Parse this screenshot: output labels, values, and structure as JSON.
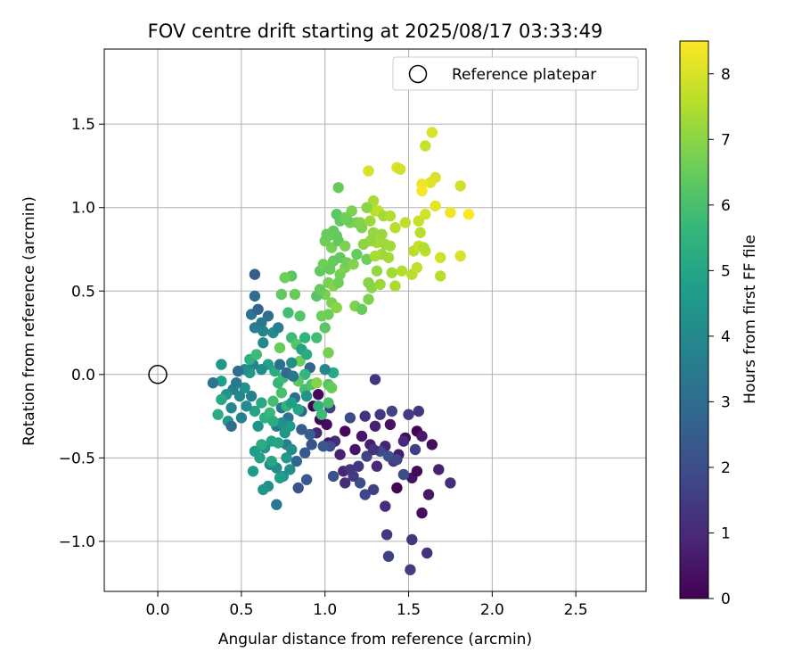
{
  "chart_data": {
    "type": "scatter",
    "title": "FOV centre drift starting at 2025/08/17 03:33:49",
    "xlabel": "Angular distance from reference (arcmin)",
    "ylabel": "Rotation from reference (arcmin)",
    "xlim": [
      -0.32,
      2.92
    ],
    "ylim": [
      -1.3,
      1.95
    ],
    "xticks": [
      0.0,
      0.5,
      1.0,
      1.5,
      2.0,
      2.5
    ],
    "xtick_labels": [
      "0.0",
      "0.5",
      "1.0",
      "1.5",
      "2.0",
      "2.5"
    ],
    "yticks": [
      -1.0,
      -0.5,
      0.0,
      0.5,
      1.0,
      1.5
    ],
    "ytick_labels": [
      "−1.0",
      "−0.5",
      "0.0",
      "0.5",
      "1.0",
      "1.5"
    ],
    "grid": true,
    "legend": {
      "position": "top-right",
      "entries": [
        "Reference platepar"
      ]
    },
    "reference_point": {
      "x": 0.0,
      "y": 0.0
    },
    "colorbar": {
      "label": "Hours from first FF file",
      "min": 0,
      "max": 8.5,
      "ticks": [
        0,
        1,
        2,
        3,
        4,
        5,
        6,
        7,
        8
      ],
      "tick_labels": [
        "0",
        "1",
        "2",
        "3",
        "4",
        "5",
        "6",
        "7",
        "8"
      ],
      "colormap": "viridis",
      "colormap_stops": [
        "#440154",
        "#482878",
        "#3e4a89",
        "#31688e",
        "#26828e",
        "#1f9e89",
        "#35b779",
        "#6ece58",
        "#b5de2b",
        "#fde725"
      ]
    },
    "points": [
      [
        1.51,
        -1.17,
        1.5
      ],
      [
        1.38,
        -1.09,
        1.6
      ],
      [
        1.37,
        -0.96,
        1.4
      ],
      [
        1.52,
        -0.99,
        1.3
      ],
      [
        1.61,
        -1.07,
        1.2
      ],
      [
        1.58,
        -0.83,
        0.3
      ],
      [
        1.62,
        -0.72,
        0.5
      ],
      [
        1.43,
        -0.68,
        0.1
      ],
      [
        1.52,
        -0.62,
        0.4
      ],
      [
        1.55,
        -0.58,
        0.2
      ],
      [
        1.68,
        -0.57,
        0.8
      ],
      [
        1.75,
        -0.65,
        1.1
      ],
      [
        1.64,
        -0.42,
        0.3
      ],
      [
        1.55,
        -0.34,
        0.1
      ],
      [
        1.48,
        -0.38,
        0.2
      ],
      [
        1.44,
        -0.48,
        0.6
      ],
      [
        1.36,
        -0.43,
        0.9
      ],
      [
        1.41,
        -0.52,
        1.3
      ],
      [
        1.31,
        -0.55,
        1.0
      ],
      [
        1.27,
        -0.42,
        0.7
      ],
      [
        1.22,
        -0.37,
        0.5
      ],
      [
        1.18,
        -0.45,
        0.4
      ],
      [
        1.12,
        -0.34,
        0.2
      ],
      [
        1.09,
        -0.48,
        0.8
      ],
      [
        1.06,
        -0.4,
        1.0
      ],
      [
        1.02,
        -0.41,
        0.6
      ],
      [
        1.01,
        -0.3,
        0.3
      ],
      [
        0.97,
        -0.27,
        0.1
      ],
      [
        0.93,
        -0.19,
        0.0
      ],
      [
        0.96,
        -0.12,
        0.2
      ],
      [
        0.95,
        -0.35,
        0.9
      ],
      [
        1.03,
        -0.2,
        1.6
      ],
      [
        1.15,
        -0.26,
        1.9
      ],
      [
        1.24,
        -0.25,
        1.2
      ],
      [
        1.33,
        -0.24,
        1.4
      ],
      [
        1.4,
        -0.22,
        1.7
      ],
      [
        1.5,
        -0.24,
        1.5
      ],
      [
        1.56,
        -0.22,
        1.3
      ],
      [
        1.58,
        -0.37,
        0.6
      ],
      [
        1.47,
        -0.4,
        1.0
      ],
      [
        1.39,
        -0.3,
        0.4
      ],
      [
        1.3,
        -0.31,
        0.8
      ],
      [
        1.3,
        -0.03,
        1.3
      ],
      [
        1.36,
        -0.79,
        1.1
      ],
      [
        1.29,
        -0.69,
        1.6
      ],
      [
        1.24,
        -0.72,
        1.8
      ],
      [
        1.21,
        -0.65,
        2.0
      ],
      [
        1.17,
        -0.61,
        1.5
      ],
      [
        1.12,
        -0.65,
        1.1
      ],
      [
        1.11,
        -0.58,
        0.9
      ],
      [
        1.15,
        -0.57,
        1.3
      ],
      [
        1.05,
        -0.61,
        2.2
      ],
      [
        1.25,
        -0.49,
        1.7
      ],
      [
        1.33,
        -0.46,
        1.9
      ],
      [
        1.38,
        -0.49,
        2.1
      ],
      [
        1.43,
        -0.51,
        1.8
      ],
      [
        1.47,
        -0.6,
        2.0
      ],
      [
        1.54,
        -0.45,
        1.6
      ],
      [
        1.29,
        -0.45,
        1.2
      ],
      [
        1.2,
        -0.55,
        1.4
      ],
      [
        1.03,
        -0.43,
        2.0
      ],
      [
        0.99,
        -0.43,
        2.3
      ],
      [
        0.91,
        -0.36,
        2.6
      ],
      [
        0.86,
        -0.33,
        2.5
      ],
      [
        0.88,
        -0.47,
        2.4
      ],
      [
        0.92,
        -0.42,
        2.1
      ],
      [
        0.86,
        -0.22,
        2.7
      ],
      [
        0.82,
        -0.14,
        3.0
      ],
      [
        0.78,
        -0.26,
        3.2
      ],
      [
        0.74,
        -0.2,
        3.3
      ],
      [
        0.71,
        -0.31,
        3.5
      ],
      [
        0.77,
        -0.42,
        3.6
      ],
      [
        0.83,
        -0.52,
        2.8
      ],
      [
        0.84,
        -0.68,
        2.2
      ],
      [
        0.89,
        -0.63,
        2.4
      ],
      [
        0.71,
        -0.78,
        3.4
      ],
      [
        0.66,
        -0.67,
        4.2
      ],
      [
        0.63,
        -0.69,
        4.5
      ],
      [
        0.57,
        -0.58,
        4.6
      ],
      [
        0.61,
        -0.5,
        4.8
      ],
      [
        0.58,
        -0.46,
        4.7
      ],
      [
        0.64,
        -0.44,
        4.4
      ],
      [
        0.68,
        -0.4,
        4.9
      ],
      [
        0.72,
        -0.41,
        5.0
      ],
      [
        0.76,
        -0.35,
        4.5
      ],
      [
        0.67,
        -0.54,
        3.9
      ],
      [
        0.71,
        -0.56,
        4.1
      ],
      [
        0.75,
        -0.61,
        4.4
      ],
      [
        0.79,
        -0.57,
        4.3
      ],
      [
        0.77,
        -0.5,
        4.6
      ],
      [
        0.8,
        -0.45,
        4.2
      ],
      [
        0.73,
        -0.62,
        4.8
      ],
      [
        0.68,
        -0.52,
        5.0
      ],
      [
        0.62,
        -0.42,
        5.2
      ],
      [
        0.6,
        -0.31,
        4.4
      ],
      [
        0.58,
        -0.22,
        4.9
      ],
      [
        0.62,
        -0.17,
        5.1
      ],
      [
        0.64,
        -0.26,
        5.4
      ],
      [
        0.67,
        -0.23,
        5.7
      ],
      [
        0.69,
        -0.16,
        5.9
      ],
      [
        0.74,
        -0.11,
        6.0
      ],
      [
        0.77,
        -0.19,
        5.5
      ],
      [
        0.72,
        -0.05,
        5.6
      ],
      [
        0.75,
        -0.02,
        5.8
      ],
      [
        0.7,
        0.02,
        5.3
      ],
      [
        0.66,
        0.06,
        4.9
      ],
      [
        0.62,
        0.03,
        4.2
      ],
      [
        0.57,
        0.06,
        3.8
      ],
      [
        0.55,
        0.01,
        4.6
      ],
      [
        0.52,
        -0.08,
        4.3
      ],
      [
        0.49,
        -0.13,
        3.9
      ],
      [
        0.45,
        -0.09,
        3.6
      ],
      [
        0.41,
        -0.12,
        4.4
      ],
      [
        0.38,
        -0.04,
        4.8
      ],
      [
        0.33,
        -0.05,
        3.3
      ],
      [
        0.38,
        -0.15,
        5.1
      ],
      [
        0.36,
        -0.24,
        5.2
      ],
      [
        0.42,
        -0.28,
        4.5
      ],
      [
        0.44,
        -0.31,
        3.0
      ],
      [
        0.5,
        -0.26,
        3.8
      ],
      [
        0.53,
        -0.19,
        4.1
      ],
      [
        0.56,
        -0.13,
        3.7
      ],
      [
        0.44,
        -0.2,
        4.0
      ],
      [
        0.47,
        -0.05,
        3.4
      ],
      [
        0.52,
        0.03,
        4.2
      ],
      [
        0.48,
        0.02,
        3.0
      ],
      [
        0.38,
        0.06,
        4.5
      ],
      [
        0.55,
        0.09,
        5.4
      ],
      [
        0.59,
        0.12,
        5.8
      ],
      [
        0.63,
        0.19,
        4.0
      ],
      [
        0.58,
        0.28,
        3.6
      ],
      [
        0.62,
        0.31,
        3.4
      ],
      [
        0.66,
        0.35,
        3.1
      ],
      [
        0.56,
        0.36,
        3.2
      ],
      [
        0.6,
        0.39,
        2.7
      ],
      [
        0.58,
        0.47,
        3.0
      ],
      [
        0.58,
        0.6,
        2.5
      ],
      [
        0.63,
        0.26,
        3.8
      ],
      [
        0.69,
        0.25,
        4.1
      ],
      [
        0.72,
        0.28,
        3.6
      ],
      [
        0.73,
        0.16,
        6.5
      ],
      [
        0.8,
        0.22,
        5.8
      ],
      [
        0.83,
        0.18,
        6.2
      ],
      [
        0.85,
        0.08,
        6.6
      ],
      [
        0.8,
        0.07,
        4.2
      ],
      [
        0.86,
        0.15,
        4.9
      ],
      [
        0.89,
        0.12,
        5.2
      ],
      [
        0.91,
        0.04,
        2.8
      ],
      [
        0.88,
        0.0,
        5.6
      ],
      [
        0.84,
        -0.04,
        6.3
      ],
      [
        0.88,
        -0.09,
        5.9
      ],
      [
        0.92,
        -0.06,
        6.1
      ],
      [
        0.89,
        -0.13,
        4.4
      ],
      [
        0.84,
        -0.21,
        5.0
      ],
      [
        0.8,
        -0.17,
        4.7
      ],
      [
        0.79,
        -0.31,
        4.6
      ],
      [
        0.74,
        -0.29,
        4.3
      ],
      [
        0.69,
        -0.28,
        5.3
      ],
      [
        0.73,
        0.06,
        3.1
      ],
      [
        0.77,
        0.01,
        2.9
      ],
      [
        0.81,
        -0.01,
        3.3
      ],
      [
        0.78,
        0.37,
        5.9
      ],
      [
        0.85,
        0.35,
        6.2
      ],
      [
        0.82,
        0.48,
        6.5
      ],
      [
        0.74,
        0.48,
        6.4
      ],
      [
        0.8,
        0.59,
        6.3
      ],
      [
        0.76,
        0.58,
        6.6
      ],
      [
        0.88,
        0.22,
        5.5
      ],
      [
        0.95,
        0.22,
        5.9
      ],
      [
        0.98,
        0.35,
        6.6
      ],
      [
        1.0,
        0.28,
        6.3
      ],
      [
        1.02,
        0.13,
        6.7
      ],
      [
        0.95,
        -0.05,
        6.9
      ],
      [
        1.02,
        -0.06,
        6.2
      ],
      [
        1.04,
        -0.08,
        6.5
      ],
      [
        1.05,
        0.01,
        5.1
      ],
      [
        1.0,
        0.03,
        3.9
      ],
      [
        1.02,
        -0.17,
        6.0
      ],
      [
        0.96,
        -0.19,
        5.4
      ],
      [
        0.98,
        -0.24,
        5.8
      ],
      [
        1.02,
        0.36,
        6.6
      ],
      [
        1.04,
        0.43,
        6.8
      ],
      [
        1.07,
        0.4,
        7.0
      ],
      [
        1.0,
        0.48,
        6.7
      ],
      [
        0.95,
        0.47,
        6.2
      ],
      [
        0.97,
        0.51,
        6.5
      ],
      [
        1.02,
        0.55,
        6.7
      ],
      [
        1.05,
        0.53,
        6.9
      ],
      [
        1.08,
        0.55,
        6.6
      ],
      [
        0.97,
        0.62,
        6.4
      ],
      [
        0.99,
        0.66,
        6.6
      ],
      [
        1.03,
        0.63,
        6.5
      ],
      [
        1.09,
        0.6,
        6.7
      ],
      [
        1.12,
        0.64,
        6.8
      ],
      [
        1.05,
        0.68,
        6.5
      ],
      [
        1.09,
        0.7,
        6.4
      ],
      [
        1.13,
        0.67,
        6.6
      ],
      [
        1.17,
        0.66,
        6.9
      ],
      [
        1.19,
        0.72,
        6.5
      ],
      [
        1.25,
        0.69,
        6.6
      ],
      [
        1.18,
        0.41,
        6.8
      ],
      [
        1.22,
        0.39,
        6.5
      ],
      [
        1.26,
        0.45,
        6.8
      ],
      [
        1.28,
        0.52,
        7.0
      ],
      [
        1.33,
        0.54,
        7.2
      ],
      [
        1.26,
        0.55,
        6.9
      ],
      [
        1.31,
        0.62,
        7.1
      ],
      [
        1.4,
        0.61,
        7.3
      ],
      [
        1.42,
        0.53,
        7.4
      ],
      [
        1.46,
        0.62,
        7.5
      ],
      [
        1.52,
        0.6,
        7.6
      ],
      [
        1.55,
        0.64,
        7.7
      ],
      [
        1.53,
        0.74,
        7.6
      ],
      [
        1.56,
        0.77,
        7.8
      ],
      [
        1.6,
        0.74,
        7.7
      ],
      [
        1.69,
        0.59,
        7.6
      ],
      [
        1.69,
        0.7,
        7.9
      ],
      [
        1.81,
        0.71,
        8.0
      ],
      [
        1.38,
        0.7,
        7.3
      ],
      [
        1.34,
        0.72,
        7.2
      ],
      [
        1.3,
        0.71,
        7.4
      ],
      [
        1.36,
        0.78,
        7.2
      ],
      [
        1.31,
        0.79,
        7.3
      ],
      [
        1.27,
        0.8,
        7.1
      ],
      [
        1.23,
        0.78,
        7.0
      ],
      [
        1.22,
        0.88,
        6.8
      ],
      [
        1.19,
        0.91,
        6.6
      ],
      [
        1.15,
        0.91,
        6.7
      ],
      [
        1.13,
        0.93,
        6.5
      ],
      [
        1.09,
        0.92,
        6.4
      ],
      [
        1.07,
        0.96,
        6.3
      ],
      [
        1.05,
        0.86,
        6.4
      ],
      [
        1.02,
        0.83,
        6.6
      ],
      [
        1.07,
        0.83,
        6.5
      ],
      [
        1.04,
        0.76,
        6.7
      ],
      [
        1.0,
        0.8,
        6.6
      ],
      [
        1.01,
        0.84,
        6.5
      ],
      [
        1.08,
        0.8,
        6.4
      ],
      [
        1.12,
        0.77,
        6.8
      ],
      [
        1.29,
        0.85,
        7.1
      ],
      [
        1.34,
        0.84,
        7.2
      ],
      [
        1.39,
        0.77,
        7.3
      ],
      [
        1.42,
        0.88,
        7.6
      ],
      [
        1.48,
        0.91,
        7.7
      ],
      [
        1.56,
        0.92,
        7.8
      ],
      [
        1.57,
        0.85,
        7.6
      ],
      [
        1.59,
        0.76,
        7.5
      ],
      [
        1.6,
        0.96,
        7.9
      ],
      [
        1.66,
        1.01,
        8.2
      ],
      [
        1.75,
        0.97,
        8.3
      ],
      [
        1.86,
        0.96,
        8.5
      ],
      [
        1.66,
        1.18,
        8.0
      ],
      [
        1.63,
        1.15,
        8.1
      ],
      [
        1.58,
        1.14,
        8.3
      ],
      [
        1.58,
        1.1,
        8.4
      ],
      [
        1.81,
        1.13,
        7.9
      ],
      [
        1.6,
        1.37,
        7.8
      ],
      [
        1.64,
        1.45,
        8.0
      ],
      [
        1.43,
        1.24,
        8.1
      ],
      [
        1.45,
        1.23,
        7.9
      ],
      [
        1.26,
        1.22,
        8.0
      ],
      [
        1.29,
        1.04,
        7.4
      ],
      [
        1.3,
        0.98,
        7.6
      ],
      [
        1.32,
        0.98,
        7.7
      ],
      [
        1.35,
        0.95,
        7.3
      ],
      [
        1.39,
        0.95,
        7.5
      ],
      [
        1.25,
        1.0,
        7.0
      ],
      [
        1.21,
        0.91,
        6.9
      ],
      [
        1.16,
        0.98,
        6.8
      ],
      [
        1.12,
        0.94,
        6.6
      ],
      [
        1.08,
        1.12,
        6.5
      ],
      [
        1.27,
        0.92,
        7.2
      ]
    ]
  }
}
